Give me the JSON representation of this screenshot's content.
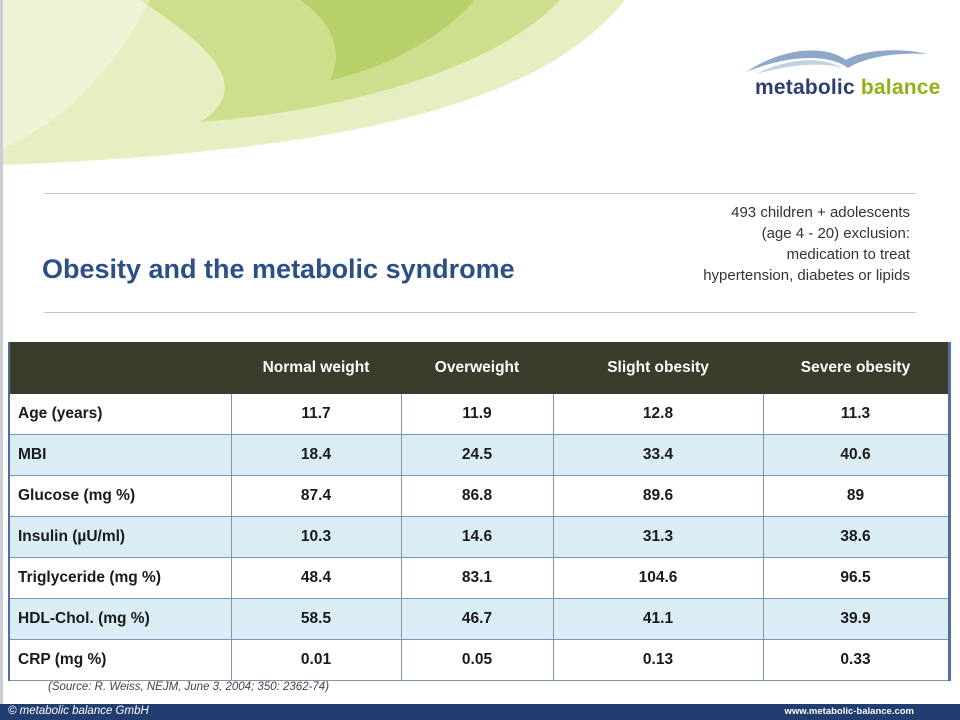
{
  "brand": {
    "logo_word1": "metabolic",
    "logo_word2": "balance",
    "primary_color": "#2d3f6e",
    "accent_color": "#8fb21b"
  },
  "slide": {
    "title": "Obesity and the metabolic syndrome",
    "note_lines": [
      "493 children + adolescents",
      "(age 4 - 20) exclusion:",
      "medication to treat",
      "hypertension, diabetes or lipids"
    ]
  },
  "table": {
    "columns": [
      "",
      "Normal weight",
      "Overweight",
      "Slight obesity",
      "Severe obesity"
    ],
    "rows": [
      [
        "Age (years)",
        "11.7",
        "11.9",
        "12.8",
        "11.3"
      ],
      [
        "MBI",
        "18.4",
        "24.5",
        "33.4",
        "40.6"
      ],
      [
        "Glucose (mg %)",
        "87.4",
        "86.8",
        "89.6",
        "89"
      ],
      [
        "Insulin  (µU/ml)",
        "10.3",
        "14.6",
        "31.3",
        "38.6"
      ],
      [
        "Triglyceride (mg %)",
        "48.4",
        "83.1",
        "104.6",
        "96.5"
      ],
      [
        "HDL-Chol.  (mg %)",
        "58.5",
        "46.7",
        "41.1",
        "39.9"
      ],
      [
        "CRP  (mg %)",
        "0.01",
        "0.05",
        "0.13",
        "0.33"
      ]
    ]
  },
  "source": "(Source: R. Weiss, NEJM, June 3, 2004; 350: 2362-74)",
  "footer": {
    "copyright": "© metabolic balance GmbH",
    "website": "www.metabolic-balance.com"
  }
}
